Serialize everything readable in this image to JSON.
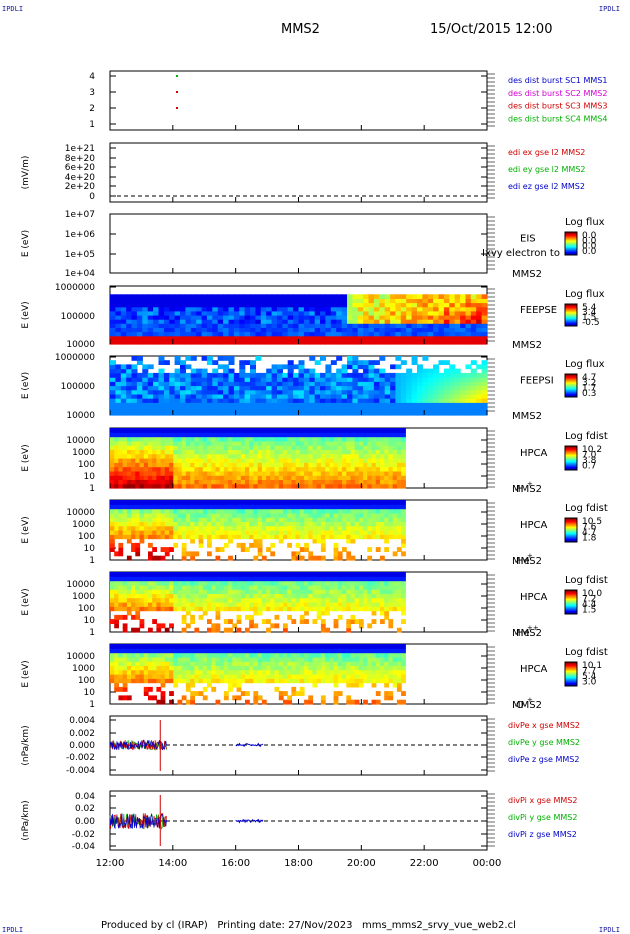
{
  "corner_label": "IPDLI",
  "header": {
    "spacecraft": "MMS2",
    "date_time": "15/Oct/2015 12:00"
  },
  "footer": {
    "text": "Produced by cl (IRAP)   Printing date: 27/Nov/2023   mms_mms2_srvy_vue_web2.cl"
  },
  "chart_data": {
    "type": "multi-panel",
    "time_axis": {
      "start": "12:00",
      "end": "00:00",
      "ticks": [
        "12:00",
        "14:00",
        "16:00",
        "18:00",
        "20:00",
        "22:00",
        "00:00"
      ]
    },
    "panels": [
      {
        "id": "burst",
        "type": "scatter",
        "ylabel": "",
        "yticks": [
          "1",
          "2",
          "3",
          "4"
        ],
        "legend": [
          {
            "text": "des dist burst SC1 MMS1",
            "color": "#0000c8"
          },
          {
            "text": "des dist burst SC2 MMS2",
            "color": "#d000d0"
          },
          {
            "text": "des dist burst SC3 MMS3",
            "color": "#d00000"
          },
          {
            "text": "des dist burst SC4 MMS4",
            "color": "#00b000"
          }
        ],
        "points": [
          {
            "t": 14.1,
            "y": 4,
            "color": "#00b000"
          },
          {
            "t": 14.1,
            "y": 3,
            "color": "#d00000"
          },
          {
            "t": 14.1,
            "y": 2,
            "color": "#d00000"
          }
        ]
      },
      {
        "id": "edi",
        "type": "line",
        "ylabel": "(mV/m)",
        "yticks": [
          "0",
          "2e+20",
          "4e+20",
          "6e+20",
          "8e+20",
          "1e+21"
        ],
        "legend": [
          {
            "text": "edi ex gse l2 MMS2",
            "color": "#d00000"
          },
          {
            "text": "edi ey gse l2 MMS2",
            "color": "#00b000"
          },
          {
            "text": "edi ez gse l2 MMS2",
            "color": "#0000c8"
          }
        ]
      },
      {
        "id": "eis",
        "type": "heatmap",
        "ylabel": "E (eV)",
        "yticks": [
          "1e+04",
          "1e+05",
          "1e+06",
          "1e+07"
        ],
        "label": "EIS",
        "label2": "MMS2",
        "overlay": "Ixvy electron to",
        "colorbar": {
          "title": "Log flux",
          "ticks": [
            "0.0",
            "0.0",
            "0.0",
            "0.0"
          ]
        }
      },
      {
        "id": "feepse",
        "type": "heatmap",
        "ylabel": "E (eV)",
        "yticks": [
          "10000",
          "100000",
          "1000000"
        ],
        "label": "FEEPSE",
        "label2": "MMS2",
        "colorbar": {
          "title": "Log flux",
          "ticks": [
            "5.4",
            "3.4",
            "1.5",
            "-0.5"
          ]
        }
      },
      {
        "id": "feepsi",
        "type": "heatmap",
        "ylabel": "E (eV)",
        "yticks": [
          "10000",
          "100000",
          "1000000"
        ],
        "label": "FEEPSI",
        "label2": "MMS2",
        "colorbar": {
          "title": "Log flux",
          "ticks": [
            "4.7",
            "3.2",
            "1.7",
            "0.3"
          ]
        }
      },
      {
        "id": "hpca_h",
        "type": "heatmap",
        "ylabel": "E (eV)",
        "yticks": [
          "1",
          "10",
          "100",
          "1000",
          "10000"
        ],
        "label": "HPCA",
        "label2": "MMS2",
        "species": "H",
        "charge": "+",
        "colorbar": {
          "title": "Log fdist",
          "ticks": [
            "10.2",
            "7.0",
            "3.8",
            "0.7"
          ]
        }
      },
      {
        "id": "hpca_he",
        "type": "heatmap",
        "ylabel": "E (eV)",
        "yticks": [
          "1",
          "10",
          "100",
          "1000",
          "10000"
        ],
        "label": "HPCA",
        "label2": "MMS2",
        "species": "He",
        "charge": "+",
        "colorbar": {
          "title": "Log fdist",
          "ticks": [
            "10.5",
            "7.6",
            "4.7",
            "1.8"
          ]
        }
      },
      {
        "id": "hpca_he2",
        "type": "heatmap",
        "ylabel": "E (eV)",
        "yticks": [
          "1",
          "10",
          "100",
          "1000",
          "10000"
        ],
        "label": "HPCA",
        "label2": "MMS2",
        "species": "He",
        "charge": "++",
        "colorbar": {
          "title": "Log fdist",
          "ticks": [
            "10.0",
            "7.2",
            "4.4",
            "1.5"
          ]
        }
      },
      {
        "id": "hpca_o",
        "type": "heatmap",
        "ylabel": "E (eV)",
        "yticks": [
          "1",
          "10",
          "100",
          "1000",
          "10000"
        ],
        "label": "HPCA",
        "label2": "MMS2",
        "species": "O",
        "charge": "+",
        "colorbar": {
          "title": "Log fdist",
          "ticks": [
            "10.1",
            "7.7",
            "5.4",
            "3.0"
          ]
        }
      },
      {
        "id": "divpe",
        "type": "line",
        "ylabel": "(nPa/km)",
        "yticks": [
          "-0.004",
          "-0.002",
          "0.000",
          "0.002",
          "0.004"
        ],
        "legend": [
          {
            "text": "divPe x gse MMS2",
            "color": "#d00000"
          },
          {
            "text": "divPe y gse MMS2",
            "color": "#00b000"
          },
          {
            "text": "divPe z gse MMS2",
            "color": "#0000c8"
          }
        ]
      },
      {
        "id": "divpi",
        "type": "line",
        "ylabel": "(nPa/km)",
        "yticks": [
          "-0.04",
          "-0.02",
          "0.00",
          "0.02",
          "0.04"
        ],
        "legend": [
          {
            "text": "divPi x gse MMS2",
            "color": "#d00000"
          },
          {
            "text": "divPi y gse MMS2",
            "color": "#00b000"
          },
          {
            "text": "divPi z gse MMS2",
            "color": "#0000c8"
          }
        ]
      }
    ]
  }
}
